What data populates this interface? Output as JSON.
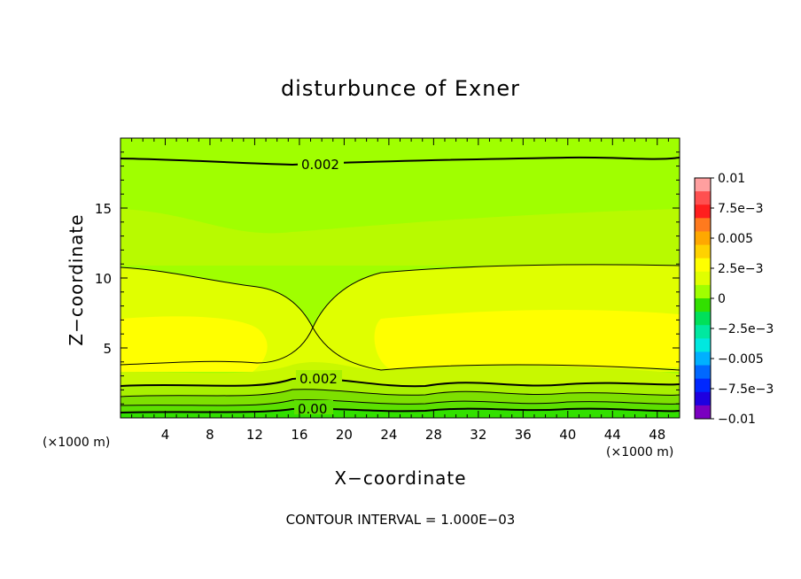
{
  "chart_data": {
    "type": "heatmap",
    "title": "disturbunce of Exner",
    "xlabel": "X−coordinate",
    "ylabel": "Z−coordinate",
    "x_unit": "(×1000 m)",
    "y_unit": "(×1000 m)",
    "footer": "CONTOUR INTERVAL = 1.000E−03",
    "xlim": [
      0,
      50
    ],
    "ylim": [
      0,
      20
    ],
    "x_ticks": [
      "4",
      "8",
      "12",
      "16",
      "20",
      "24",
      "28",
      "32",
      "36",
      "40",
      "44",
      "48"
    ],
    "y_ticks": [
      "5",
      "10",
      "15"
    ],
    "colorbar": {
      "range": [
        -0.01,
        0.01
      ],
      "labels": [
        "0.01",
        "7.5e−3",
        "0.005",
        "2.5e−3",
        "0",
        "−2.5e−3",
        "−0.005",
        "−7.5e−3",
        "−0.01"
      ],
      "colors": [
        "#ff9f9f",
        "#ff5050",
        "#ff1e1e",
        "#ff7a1e",
        "#ffa800",
        "#ffd200",
        "#ffff00",
        "#e0ff00",
        "#a0ff00",
        "#32e000",
        "#00e05a",
        "#00e8a0",
        "#00e8e0",
        "#00b0ff",
        "#0068ff",
        "#0028ff",
        "#1e00e0",
        "#7a00c0"
      ]
    },
    "contour_labels": [
      "0.002",
      "0.002",
      "0.00"
    ],
    "bands": [
      {
        "z_from": 0,
        "z_to": 0.8,
        "value": -0.0005,
        "color": "#32e000"
      },
      {
        "z_from": 0.8,
        "z_to": 1.6,
        "value": 0.0005,
        "color": "#5ce000"
      },
      {
        "z_from": 1.6,
        "z_to": 2.6,
        "value": 0.001,
        "color": "#7ee000"
      },
      {
        "z_from": 2.6,
        "z_to": 3.6,
        "value": 0.002,
        "color": "#a8f000"
      },
      {
        "z_from": 3.6,
        "z_to": 10.8,
        "value": 0.003,
        "color": "#e0ff00"
      },
      {
        "z_from": 4.5,
        "z_to": 7.5,
        "value": 0.0035,
        "color": "#ffff00"
      },
      {
        "z_from": 10.8,
        "z_to": 14.0,
        "value": 0.0025,
        "color": "#c8f800"
      },
      {
        "z_from": 14.0,
        "z_to": 20,
        "value": 0.002,
        "color": "#a0ff00"
      }
    ]
  }
}
